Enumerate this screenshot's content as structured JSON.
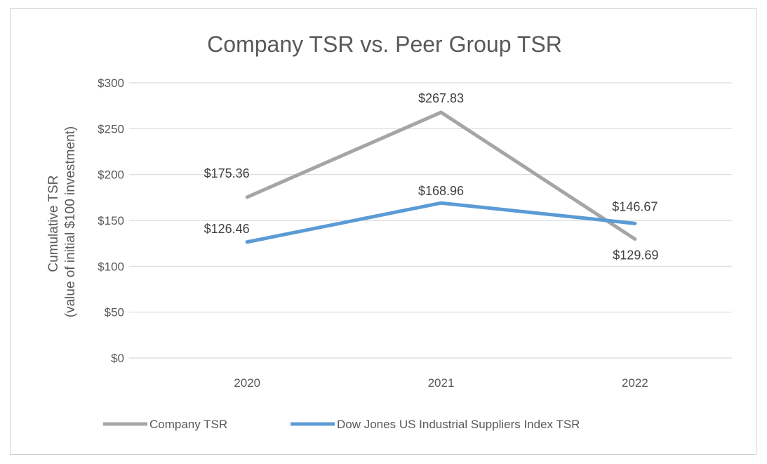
{
  "chart_data": {
    "type": "line",
    "title": "Company TSR vs. Peer Group TSR",
    "xlabel": "",
    "ylabel_lines": [
      "Cumulative TSR",
      "(value of initial $100 investment)"
    ],
    "categories": [
      "2020",
      "2021",
      "2022"
    ],
    "ylim": [
      0,
      300
    ],
    "yticks": [
      0,
      50,
      100,
      150,
      200,
      250,
      300
    ],
    "ytick_labels": [
      "$0",
      "$50",
      "$100",
      "$150",
      "$200",
      "$250",
      "$300"
    ],
    "grid": true,
    "legend_position": "bottom",
    "series": [
      {
        "name": "Company TSR",
        "values": [
          175.36,
          267.83,
          129.69
        ],
        "labels": [
          "$175.36",
          "$267.83",
          "$129.69"
        ],
        "color": "#a5a5a5"
      },
      {
        "name": "Dow Jones US Industrial Suppliers Index TSR",
        "values": [
          126.46,
          168.96,
          146.67
        ],
        "labels": [
          "$126.46",
          "$168.96",
          "$146.67"
        ],
        "color": "#5b9bd5"
      }
    ]
  }
}
